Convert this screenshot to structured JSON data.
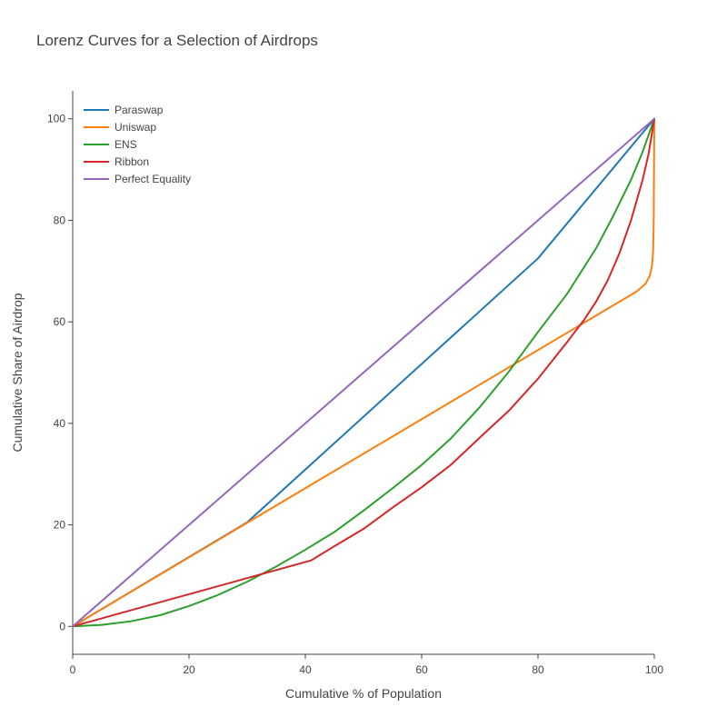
{
  "chart_data": {
    "type": "line",
    "title": "Lorenz Curves for a Selection of Airdrops",
    "xlabel": "Cumulative % of Population",
    "ylabel": "Cumulative Share of Airdrop",
    "xlim": [
      0,
      100
    ],
    "ylim": [
      -5.5,
      105.5
    ],
    "xticks": [
      0,
      20,
      40,
      60,
      80,
      100
    ],
    "yticks": [
      0,
      20,
      40,
      60,
      80,
      100
    ],
    "grid": false,
    "legend_position": "top-left",
    "series": [
      {
        "name": "Paraswap",
        "color": "#1f77b4",
        "x": [
          0,
          30,
          80,
          100
        ],
        "y": [
          0,
          20.5,
          72.5,
          100
        ]
      },
      {
        "name": "Uniswap",
        "color": "#ff7f0e",
        "x": [
          0,
          97,
          98.5,
          99.2,
          99.6,
          99.8,
          99.9,
          100
        ],
        "y": [
          0,
          66,
          67.5,
          69,
          71,
          74,
          80,
          100
        ]
      },
      {
        "name": "ENS",
        "color": "#2ca02c",
        "x": [
          0,
          5,
          10,
          15,
          20,
          25,
          30,
          35,
          40,
          45,
          50,
          55,
          60,
          65,
          70,
          75,
          80,
          85,
          90,
          93,
          96,
          98,
          100
        ],
        "y": [
          0,
          0.3,
          1.0,
          2.2,
          4.0,
          6.2,
          8.8,
          11.8,
          15.1,
          18.6,
          22.8,
          27.2,
          31.8,
          37.0,
          43.2,
          50.2,
          58.0,
          65.5,
          74.5,
          81,
          88,
          93.5,
          100
        ]
      },
      {
        "name": "Ribbon",
        "color": "#d62728",
        "x": [
          0,
          41,
          45,
          50,
          55,
          60,
          65,
          70,
          75,
          80,
          85,
          88,
          90,
          92,
          94,
          96,
          98,
          99,
          100
        ],
        "y": [
          0,
          13,
          15.8,
          19.2,
          23.4,
          27.4,
          31.8,
          37.2,
          42.5,
          48.8,
          56,
          60.5,
          64,
          68.2,
          73.5,
          80,
          88,
          93,
          100
        ]
      },
      {
        "name": "Perfect Equality",
        "color": "#9467bd",
        "x": [
          0,
          100
        ],
        "y": [
          0,
          100
        ]
      }
    ]
  }
}
